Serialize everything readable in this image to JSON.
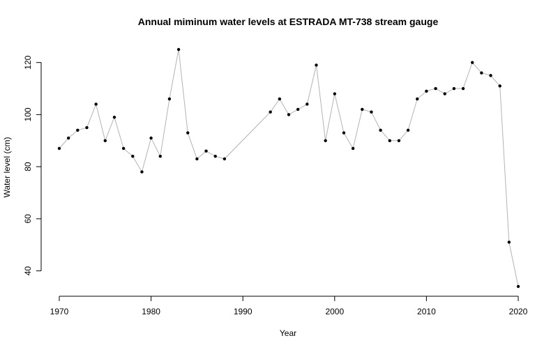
{
  "chart_data": {
    "type": "line",
    "title": "Annual miminum water levels at ESTRADA MT-738 stream gauge",
    "xlabel": "Year",
    "ylabel": "Water level (cm)",
    "xlim": [
      1970,
      2020
    ],
    "ylim": [
      34,
      125
    ],
    "x_ticks": [
      1970,
      1980,
      1990,
      2000,
      2010,
      2020
    ],
    "y_ticks": [
      40,
      60,
      80,
      100,
      120
    ],
    "grid": false,
    "colors": {
      "line": "#b3b3b3",
      "point": "#000000",
      "axis": "#000000"
    },
    "series": [
      {
        "x": [
          1970,
          1971,
          1972,
          1973,
          1974,
          1975,
          1976,
          1977,
          1978,
          1979,
          1980,
          1981,
          1982,
          1983,
          1984,
          1985,
          1986,
          1987,
          1988,
          1993,
          1994,
          1995,
          1996,
          1997,
          1998,
          1999,
          2000,
          2001,
          2002,
          2003,
          2004,
          2005,
          2006,
          2007,
          2008,
          2009,
          2010,
          2011,
          2012,
          2013,
          2014,
          2015,
          2016,
          2017,
          2018,
          2019,
          2020
        ],
        "y": [
          87,
          91,
          94,
          95,
          104,
          90,
          99,
          87,
          84,
          78,
          91,
          84,
          106,
          125,
          93,
          83,
          86,
          84,
          83,
          101,
          106,
          100,
          102,
          104,
          119,
          90,
          108,
          93,
          87,
          102,
          101,
          94,
          90,
          90,
          94,
          106,
          109,
          110,
          108,
          110,
          110,
          120,
          116,
          115,
          111,
          51,
          34
        ]
      }
    ]
  }
}
